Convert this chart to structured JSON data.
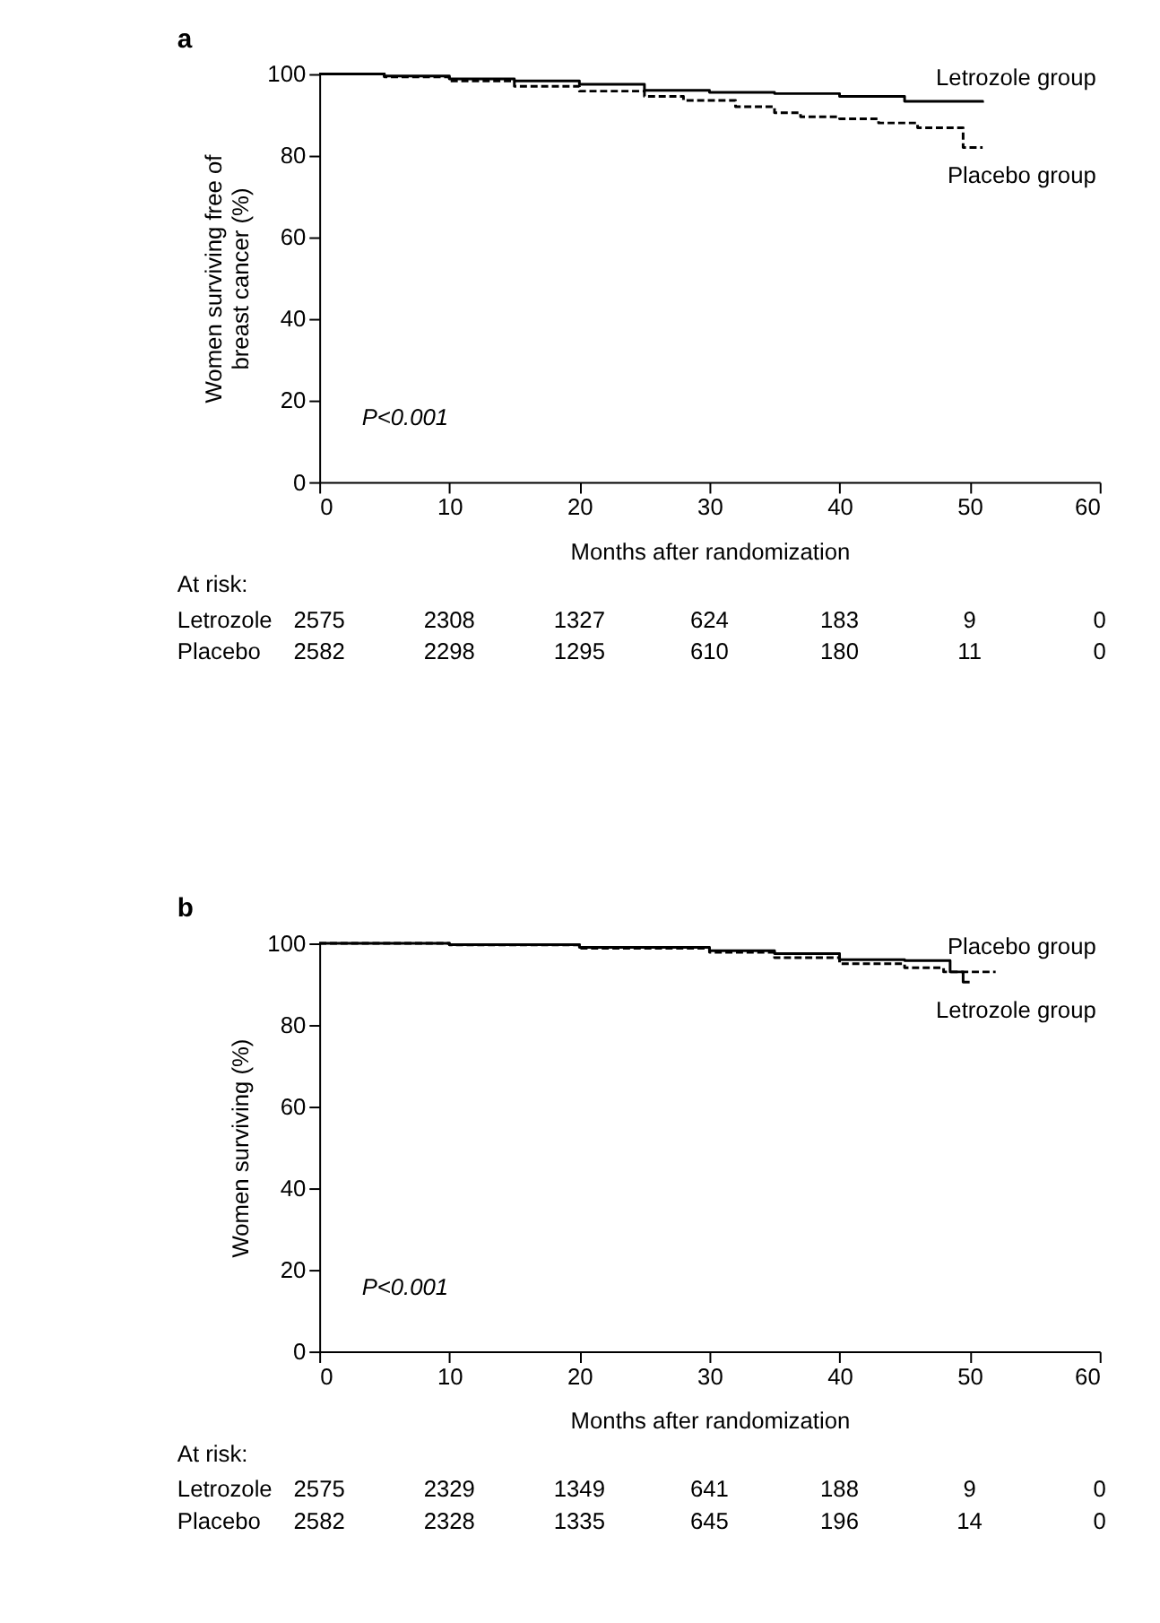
{
  "chart_data": [
    {
      "type": "step",
      "title": "a",
      "xlabel": "Months after randomization",
      "ylabel": "Women surviving free of breast cancer (%)",
      "xlim": [
        0,
        60
      ],
      "xticks": [
        0,
        10,
        20,
        30,
        40,
        50,
        60
      ],
      "ylim": [
        0,
        100
      ],
      "yticks": [
        0,
        20,
        40,
        60,
        80,
        100
      ],
      "grid": false,
      "series": [
        {
          "name": "Letrozole group",
          "color": "#000000",
          "line_style": "solid",
          "x": [
            0,
            5,
            10,
            15,
            20,
            25,
            30,
            35,
            40,
            45,
            51
          ],
          "values": [
            100,
            99.5,
            98.8,
            98.3,
            97.5,
            96,
            95.5,
            95.2,
            94.5,
            93.3,
            93
          ]
        },
        {
          "name": "Placebo group",
          "color": "#000000",
          "line_style": "dashed",
          "x": [
            0,
            5,
            10,
            15,
            20,
            25,
            28,
            32,
            35,
            37,
            40,
            43,
            46,
            49.5,
            51
          ],
          "values": [
            100,
            99.3,
            98.3,
            97,
            95.8,
            94.5,
            93.5,
            92,
            90.5,
            89.5,
            89,
            88,
            86.8,
            82,
            82
          ]
        }
      ],
      "annotations": [
        "P<0.001",
        "At risk:",
        "Letrozole 2575 2308 1327 624 183 9 0",
        "Placebo 2582 2298 1295 610 180 11 0"
      ]
    },
    {
      "type": "step",
      "title": "b",
      "xlabel": "Months after randomization",
      "ylabel": "Women surviving (%)",
      "xlim": [
        0,
        60
      ],
      "xticks": [
        0,
        10,
        20,
        30,
        40,
        50,
        60
      ],
      "ylim": [
        0,
        100
      ],
      "yticks": [
        0,
        20,
        40,
        60,
        80,
        100
      ],
      "grid": false,
      "series": [
        {
          "name": "Letrozole group",
          "color": "#000000",
          "line_style": "solid",
          "x": [
            0,
            10,
            20,
            30,
            35,
            40,
            45,
            48.5,
            49.5,
            50
          ],
          "values": [
            100,
            99.7,
            99,
            98.2,
            97.5,
            96,
            95.8,
            93,
            90.5,
            90.5
          ]
        },
        {
          "name": "Placebo group",
          "color": "#000000",
          "line_style": "dashed",
          "x": [
            0,
            10,
            20,
            30,
            35,
            40,
            45,
            48,
            52
          ],
          "values": [
            100,
            99.6,
            98.8,
            97.8,
            96.5,
            95,
            94,
            93,
            93
          ]
        }
      ],
      "annotations": [
        "P<0.001",
        "At risk:",
        "Letrozole 2575 2329 1349 641 188 9 0",
        "Placebo 2582 2328 1335 645 196 14 0"
      ]
    }
  ]
}
